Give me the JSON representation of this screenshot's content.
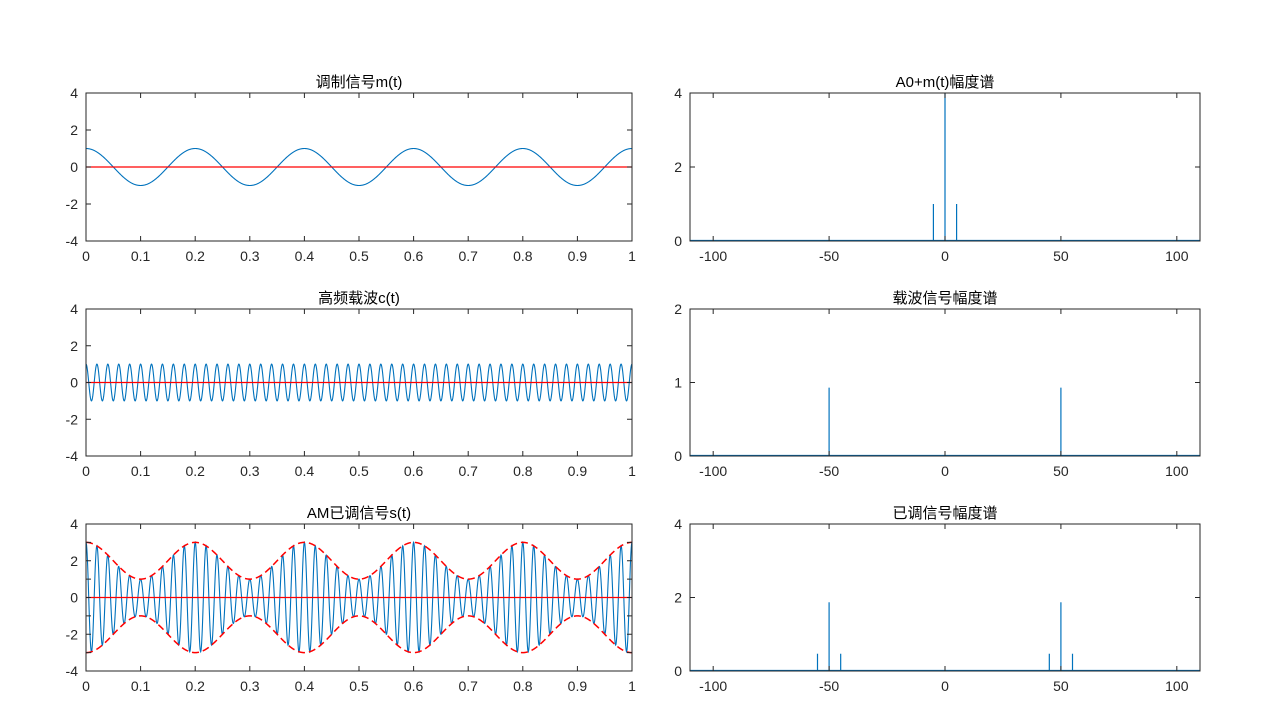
{
  "figure": {
    "background": "#ffffff",
    "line_color": "#0072BD",
    "ref_color": "#FF0000",
    "axis_color": "#262626"
  },
  "chart_data": [
    {
      "type": "line",
      "title": "调制信号m(t)",
      "xlim": [
        0,
        1
      ],
      "ylim": [
        -4,
        4
      ],
      "xticks": [
        0,
        0.1,
        0.2,
        0.3,
        0.4,
        0.5,
        0.6,
        0.7,
        0.8,
        0.9,
        1
      ],
      "xtick_labels": [
        "0",
        "0.1",
        "0.2",
        "0.3",
        "0.4",
        "0.5",
        "0.6",
        "0.7",
        "0.8",
        "0.9",
        "1"
      ],
      "yticks": [
        -4,
        -2,
        0,
        2,
        4
      ],
      "ytick_labels": [
        "-4",
        "-2",
        "0",
        "2",
        "4"
      ],
      "series": [
        {
          "name": "m(t)",
          "kind": "cosine",
          "amplitude": 1,
          "frequency_hz": 5,
          "color": "#0072BD"
        },
        {
          "name": "zero line",
          "kind": "constant",
          "value": 0,
          "color": "#FF0000"
        }
      ]
    },
    {
      "type": "line",
      "title": "A0+m(t)幅度谱",
      "xlim": [
        -110,
        110
      ],
      "ylim": [
        0,
        4
      ],
      "xticks": [
        -100,
        -50,
        0,
        50,
        100
      ],
      "xtick_labels": [
        "-100",
        "-50",
        "0",
        "50",
        "100"
      ],
      "yticks": [
        0,
        2,
        4
      ],
      "ytick_labels": [
        "0",
        "2",
        "4"
      ],
      "series": [
        {
          "name": "spectrum",
          "kind": "stems",
          "x": [
            -5,
            0,
            5
          ],
          "values": [
            1,
            4,
            1
          ],
          "color": "#0072BD"
        }
      ]
    },
    {
      "type": "line",
      "title": "高频载波c(t)",
      "xlim": [
        0,
        1
      ],
      "ylim": [
        -4,
        4
      ],
      "xticks": [
        0,
        0.1,
        0.2,
        0.3,
        0.4,
        0.5,
        0.6,
        0.7,
        0.8,
        0.9,
        1
      ],
      "xtick_labels": [
        "0",
        "0.1",
        "0.2",
        "0.3",
        "0.4",
        "0.5",
        "0.6",
        "0.7",
        "0.8",
        "0.9",
        "1"
      ],
      "yticks": [
        -4,
        -2,
        0,
        2,
        4
      ],
      "ytick_labels": [
        "-4",
        "-2",
        "0",
        "2",
        "4"
      ],
      "series": [
        {
          "name": "c(t)",
          "kind": "cosine",
          "amplitude": 1,
          "frequency_hz": 50,
          "color": "#0072BD"
        },
        {
          "name": "zero line",
          "kind": "constant",
          "value": 0,
          "color": "#FF0000"
        }
      ]
    },
    {
      "type": "line",
      "title": "载波信号幅度谱",
      "xlim": [
        -110,
        110
      ],
      "ylim": [
        0,
        2
      ],
      "xticks": [
        -100,
        -50,
        0,
        50,
        100
      ],
      "xtick_labels": [
        "-100",
        "-50",
        "0",
        "50",
        "100"
      ],
      "yticks": [
        0,
        1,
        2
      ],
      "ytick_labels": [
        "0",
        "1",
        "2"
      ],
      "series": [
        {
          "name": "spectrum",
          "kind": "stems",
          "x": [
            -50,
            50
          ],
          "values": [
            0.93,
            0.93
          ],
          "color": "#0072BD"
        }
      ]
    },
    {
      "type": "line",
      "title": "AM已调信号s(t)",
      "xlim": [
        0,
        1
      ],
      "ylim": [
        -4,
        4
      ],
      "xticks": [
        0,
        0.1,
        0.2,
        0.3,
        0.4,
        0.5,
        0.6,
        0.7,
        0.8,
        0.9,
        1
      ],
      "xtick_labels": [
        "0",
        "0.1",
        "0.2",
        "0.3",
        "0.4",
        "0.5",
        "0.6",
        "0.7",
        "0.8",
        "0.9",
        "1"
      ],
      "yticks": [
        -4,
        -3,
        -2,
        -1,
        0,
        1,
        2,
        3,
        4
      ],
      "ytick_labels": [
        "-4",
        "",
        "-2",
        "",
        "0",
        "",
        "2",
        "",
        "4"
      ],
      "series": [
        {
          "name": "s(t)",
          "kind": "am",
          "offset": 2,
          "amplitude": 1,
          "mod_frequency_hz": 5,
          "carrier_frequency_hz": 50,
          "color": "#0072BD"
        },
        {
          "name": "upper envelope",
          "kind": "envelope_upper",
          "offset": 2,
          "amplitude": 1,
          "mod_frequency_hz": 5,
          "color": "#FF0000",
          "dashed": true
        },
        {
          "name": "lower envelope",
          "kind": "envelope_lower",
          "offset": 2,
          "amplitude": 1,
          "mod_frequency_hz": 5,
          "color": "#FF0000",
          "dashed": true
        },
        {
          "name": "zero line",
          "kind": "constant",
          "value": 0,
          "color": "#FF0000"
        }
      ]
    },
    {
      "type": "line",
      "title": "已调信号幅度谱",
      "xlim": [
        -110,
        110
      ],
      "ylim": [
        0,
        4
      ],
      "xticks": [
        -100,
        -50,
        0,
        50,
        100
      ],
      "xtick_labels": [
        "-100",
        "-50",
        "0",
        "50",
        "100"
      ],
      "yticks": [
        0,
        2,
        4
      ],
      "ytick_labels": [
        "0",
        "2",
        "4"
      ],
      "series": [
        {
          "name": "spectrum",
          "kind": "stems",
          "x": [
            -55,
            -50,
            -45,
            45,
            50,
            55
          ],
          "values": [
            0.47,
            1.87,
            0.47,
            0.47,
            1.87,
            0.47
          ],
          "color": "#0072BD"
        }
      ]
    }
  ]
}
